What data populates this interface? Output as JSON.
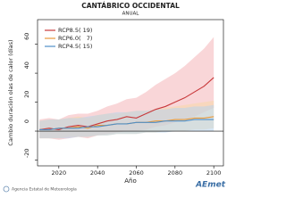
{
  "chart_data": {
    "type": "line",
    "title": "CANTÁBRICO OCCIDENTAL",
    "subtitle": "ANUAL",
    "x_label": "Año",
    "y_label": "Cambio duración olas de calor (días)",
    "x": [
      2010,
      2015,
      2020,
      2025,
      2030,
      2035,
      2040,
      2045,
      2050,
      2055,
      2060,
      2065,
      2070,
      2075,
      2080,
      2085,
      2090,
      2095,
      2100
    ],
    "series": [
      {
        "name": "RCP8.5",
        "count_label": "( 19)",
        "color": "#c8383a",
        "band_color": "#f4b4b8",
        "values": [
          1,
          2,
          1,
          3,
          4,
          3,
          5,
          7,
          8,
          10,
          9,
          12,
          15,
          17,
          20,
          23,
          27,
          31,
          37
        ],
        "upper": [
          8,
          9,
          8,
          11,
          12,
          12,
          14,
          17,
          19,
          22,
          23,
          27,
          32,
          36,
          40,
          45,
          51,
          57,
          65
        ],
        "lower": [
          -5,
          -5,
          -6,
          -5,
          -4,
          -5,
          -3,
          -2,
          -1,
          0,
          0,
          1,
          3,
          4,
          6,
          8,
          10,
          13,
          16
        ]
      },
      {
        "name": "RCP6.0",
        "count_label": "(   7)",
        "color": "#e89a3c",
        "band_color": "#f7d9a8",
        "values": [
          1,
          1,
          2,
          2,
          3,
          2,
          4,
          4,
          5,
          5,
          6,
          6,
          7,
          7,
          8,
          8,
          9,
          9,
          10
        ],
        "upper": [
          7,
          8,
          8,
          9,
          10,
          9,
          11,
          12,
          12,
          13,
          14,
          14,
          15,
          16,
          17,
          18,
          19,
          20,
          21
        ],
        "lower": [
          -5,
          -5,
          -5,
          -4,
          -4,
          -4,
          -3,
          -3,
          -2,
          -2,
          -2,
          -1,
          -1,
          0,
          0,
          0,
          1,
          1,
          2
        ]
      },
      {
        "name": "RCP4.5",
        "count_label": "( 15)",
        "color": "#4f8fc8",
        "band_color": "#b8d4ec",
        "values": [
          1,
          1,
          2,
          2,
          2,
          3,
          3,
          4,
          5,
          5,
          6,
          6,
          6,
          7,
          7,
          7,
          8,
          8,
          8
        ],
        "upper": [
          7,
          8,
          8,
          9,
          9,
          10,
          11,
          12,
          13,
          13,
          14,
          14,
          15,
          15,
          16,
          16,
          17,
          17,
          18
        ],
        "lower": [
          -5,
          -5,
          -5,
          -5,
          -4,
          -4,
          -3,
          -3,
          -2,
          -2,
          -2,
          -1,
          -1,
          -1,
          0,
          0,
          0,
          0,
          0
        ]
      }
    ],
    "xlim": [
      2009,
      2105
    ],
    "ylim": [
      -24,
      77
    ],
    "xticks": [
      2020,
      2040,
      2060,
      2080,
      2100
    ],
    "yticks": [
      -20,
      0,
      20,
      40,
      60
    ],
    "legend": "top-left",
    "footer": {
      "agency": "Agencia Estatal de Meteorología",
      "logo": "AEmet"
    }
  }
}
